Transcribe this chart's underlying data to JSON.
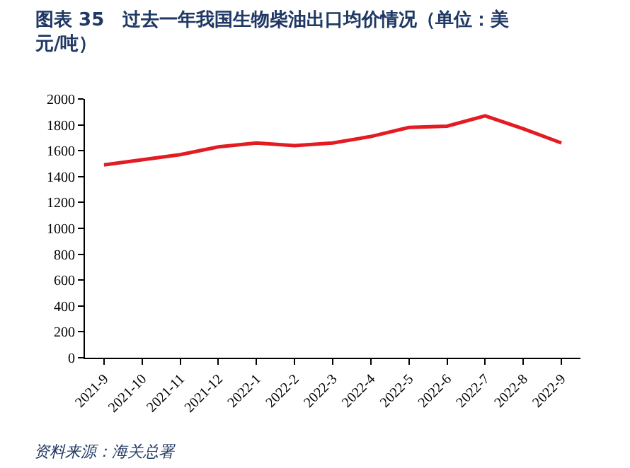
{
  "chart_data": {
    "type": "line",
    "title": "图表 35　过去一年我国生物柴油出口均价情况（单位：美元/吨）",
    "categories": [
      "2021-9",
      "2021-10",
      "2021-11",
      "2021-12",
      "2022-1",
      "2022-2",
      "2022-3",
      "2022-4",
      "2022-5",
      "2022-6",
      "2022-7",
      "2022-8",
      "2022-9"
    ],
    "series": [
      {
        "color": "#e31b23",
        "values": [
          1490,
          1530,
          1570,
          1630,
          1660,
          1640,
          1660,
          1710,
          1780,
          1790,
          1870,
          1770,
          1660
        ]
      }
    ],
    "ylim": [
      0,
      2000
    ],
    "yticks": [
      0,
      200,
      400,
      600,
      800,
      1000,
      1200,
      1400,
      1600,
      1800,
      2000
    ],
    "marker": "none",
    "line_style": "solid",
    "annotations": [
      "资料来源：海关总署"
    ]
  }
}
